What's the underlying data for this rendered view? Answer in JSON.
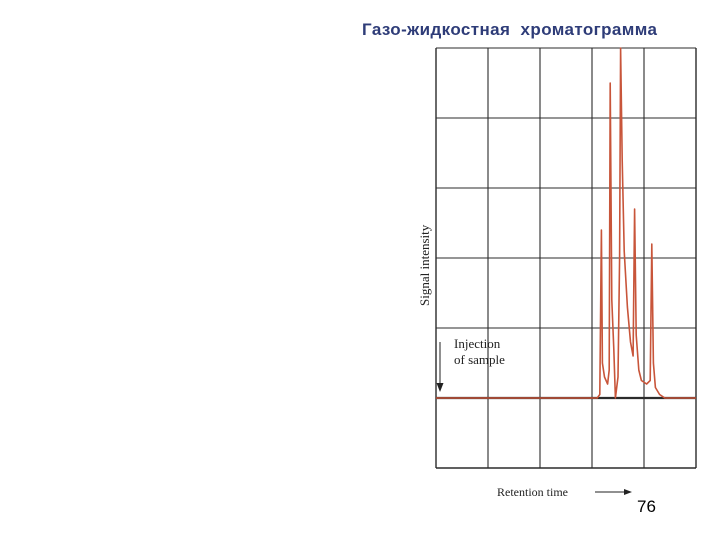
{
  "slide": {
    "title": "Газо-жидкостная  хроматограмма",
    "page_number": "76"
  },
  "colors": {
    "title": "#2e3c78",
    "grid": "#2b2b2b",
    "trace": "#c8553a",
    "baseline": "#2b2b2b"
  },
  "chart_data": {
    "type": "line",
    "title": "Газо-жидкостная  хроматограмма",
    "xlabel": "Retention time",
    "ylabel": "Signal intensity",
    "xlim": [
      0,
      5
    ],
    "ylim": [
      0,
      6
    ],
    "grid": true,
    "baseline": 1.0,
    "annotation": {
      "lines": [
        "Injection",
        "of sample"
      ],
      "x": 0.05
    },
    "peaks": [
      {
        "x": 3.18,
        "y": 3.4
      },
      {
        "x": 3.35,
        "y": 5.5
      },
      {
        "x": 3.55,
        "y": 6.0
      },
      {
        "x": 3.82,
        "y": 3.7
      },
      {
        "x": 4.15,
        "y": 3.2
      }
    ],
    "series": [
      {
        "values": [
          [
            0,
            1.0
          ],
          [
            3.1,
            1.0
          ],
          [
            3.15,
            1.05
          ],
          [
            3.18,
            3.4
          ],
          [
            3.2,
            1.5
          ],
          [
            3.24,
            1.3
          ],
          [
            3.3,
            1.2
          ],
          [
            3.33,
            1.4
          ],
          [
            3.35,
            5.5
          ],
          [
            3.38,
            2.4
          ],
          [
            3.42,
            1.7
          ],
          [
            3.45,
            1.0
          ],
          [
            3.5,
            1.3
          ],
          [
            3.53,
            3.0
          ],
          [
            3.55,
            6.0
          ],
          [
            3.58,
            4.4
          ],
          [
            3.62,
            3.1
          ],
          [
            3.68,
            2.3
          ],
          [
            3.74,
            1.8
          ],
          [
            3.79,
            1.6
          ],
          [
            3.82,
            3.7
          ],
          [
            3.85,
            1.9
          ],
          [
            3.9,
            1.4
          ],
          [
            3.95,
            1.25
          ],
          [
            4.05,
            1.2
          ],
          [
            4.12,
            1.25
          ],
          [
            4.15,
            3.2
          ],
          [
            4.18,
            1.5
          ],
          [
            4.22,
            1.15
          ],
          [
            4.3,
            1.05
          ],
          [
            4.4,
            1.0
          ],
          [
            5.0,
            1.0
          ]
        ]
      }
    ]
  }
}
